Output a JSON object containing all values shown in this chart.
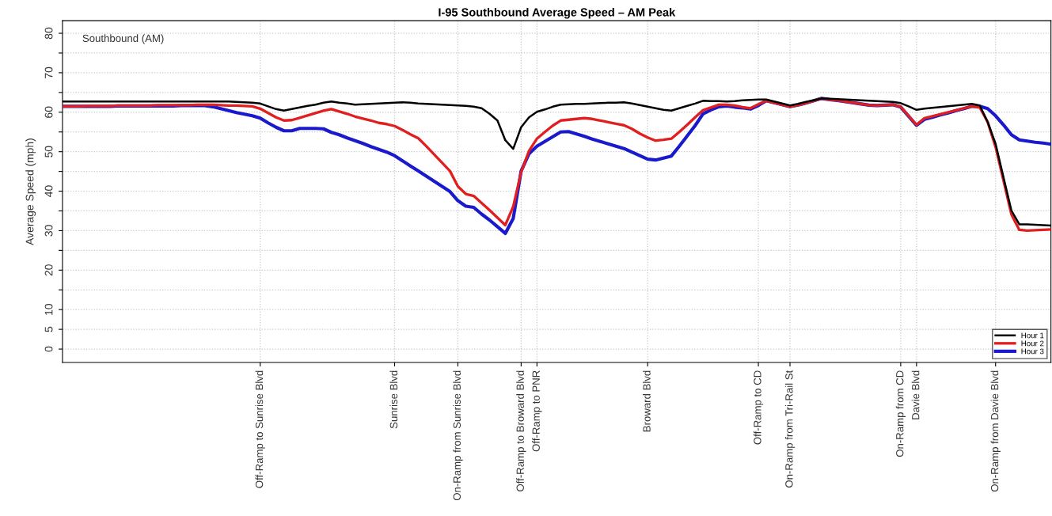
{
  "chart_data": {
    "type": "line",
    "title": "I-95 Southbound Average Speed – AM Peak",
    "ylabel": "Average Speed (mph)",
    "annotations": [
      "Southbound (AM)"
    ],
    "categories": [
      null,
      null,
      null,
      null,
      null,
      null,
      null,
      null,
      null,
      null,
      null,
      null,
      null,
      null,
      null,
      null,
      null,
      null,
      null,
      null,
      null,
      null,
      null,
      null,
      null,
      "Off-Ramp to Sunrise Blvd",
      null,
      null,
      null,
      null,
      null,
      null,
      null,
      null,
      null,
      null,
      null,
      null,
      null,
      null,
      null,
      null,
      "Sunrise Blvd",
      null,
      null,
      null,
      null,
      null,
      null,
      null,
      "On-Ramp from Sunrise Blvd",
      null,
      null,
      null,
      null,
      null,
      null,
      null,
      "Off-Ramp to Broward Blvd",
      null,
      "Off-Ramp to PNR",
      null,
      null,
      null,
      null,
      null,
      null,
      null,
      null,
      null,
      null,
      null,
      null,
      null,
      "Broward Blvd",
      null,
      null,
      null,
      null,
      null,
      null,
      null,
      null,
      null,
      null,
      null,
      null,
      null,
      "Off-Ramp to CD",
      null,
      null,
      null,
      "On-Ramp from Tri-Rail St",
      null,
      null,
      null,
      null,
      null,
      null,
      null,
      null,
      null,
      null,
      null,
      null,
      null,
      "On-Ramp from CD",
      null,
      "Davie Blvd",
      null,
      null,
      null,
      null,
      null,
      null,
      null,
      null,
      null,
      "On-Ramp from Davie Blvd",
      null,
      null,
      null,
      null,
      null,
      null,
      null
    ],
    "ylim": [
      -3.4,
      83.2
    ],
    "yticks": [
      0,
      5,
      10,
      {
        "value": 15,
        "label": null
      },
      20,
      {
        "value": 25,
        "label": null
      },
      30,
      {
        "value": 35,
        "label": null
      },
      40,
      {
        "value": 45,
        "label": null
      },
      50,
      {
        "value": 55,
        "label": null
      },
      60,
      {
        "value": 65,
        "label": null
      },
      70,
      {
        "value": 75,
        "label": null
      },
      80
    ],
    "grid": true,
    "legend": "bottom right",
    "marker": "none",
    "line_style": "solid",
    "series": [
      {
        "name": "Hour 1",
        "color": "#000000",
        "values": [
          62.7,
          62.7,
          62.7,
          62.7,
          62.7,
          62.7,
          62.7,
          62.7,
          62.7,
          62.7,
          62.7,
          62.7,
          62.7,
          62.7,
          62.7,
          62.7,
          62.7,
          62.7,
          62.7,
          62.7,
          62.7,
          62.7,
          62.6,
          62.5,
          62.4,
          62.2,
          61.5,
          60.8,
          60.4,
          60.8,
          61.2,
          61.6,
          61.9,
          62.4,
          62.7,
          62.4,
          62.2,
          61.9,
          62.0,
          62.1,
          62.2,
          62.3,
          62.4,
          62.5,
          62.4,
          62.2,
          62.1,
          62.0,
          61.9,
          61.8,
          61.7,
          61.6,
          61.4,
          61.0,
          59.6,
          57.9,
          52.9,
          50.7,
          56.2,
          58.7,
          60.1,
          60.7,
          61.4,
          61.9,
          62.0,
          62.1,
          62.1,
          62.2,
          62.3,
          62.4,
          62.4,
          62.5,
          62.2,
          61.8,
          61.4,
          61.0,
          60.6,
          60.4,
          61.0,
          61.6,
          62.2,
          62.9,
          62.8,
          62.8,
          62.7,
          62.8,
          63.0,
          63.1,
          63.2,
          63.2,
          62.7,
          62.2,
          61.7,
          62.1,
          62.6,
          63.0,
          63.5,
          63.4,
          63.3,
          63.2,
          63.1,
          63.0,
          62.9,
          62.8,
          62.7,
          62.6,
          62.3,
          61.5,
          60.6,
          60.9,
          61.1,
          61.3,
          61.5,
          61.7,
          61.9,
          62.1,
          61.7,
          57.5,
          52.0,
          43.5,
          35.1,
          31.6,
          31.6,
          31.5,
          31.4,
          31.3
        ]
      },
      {
        "name": "Hour 2",
        "color": "#e02020",
        "values": [
          61.5,
          61.5,
          61.5,
          61.6,
          61.6,
          61.6,
          61.6,
          61.7,
          61.7,
          61.7,
          61.7,
          61.7,
          61.8,
          61.8,
          61.8,
          61.8,
          61.8,
          61.9,
          61.9,
          61.9,
          61.8,
          61.7,
          61.7,
          61.6,
          61.5,
          60.9,
          59.8,
          58.7,
          57.9,
          58.0,
          58.6,
          59.2,
          59.8,
          60.4,
          60.8,
          60.2,
          59.6,
          58.9,
          58.4,
          57.9,
          57.3,
          57.0,
          56.5,
          55.5,
          54.4,
          53.4,
          51.4,
          49.3,
          47.2,
          45.1,
          41.2,
          39.3,
          38.8,
          37.0,
          35.2,
          33.3,
          31.4,
          36.1,
          44.8,
          50.2,
          53.3,
          55.0,
          56.6,
          57.9,
          58.1,
          58.3,
          58.5,
          58.3,
          57.9,
          57.5,
          57.1,
          56.7,
          55.8,
          54.6,
          53.6,
          52.8,
          53.0,
          53.3,
          55.0,
          56.8,
          58.7,
          60.5,
          61.2,
          61.9,
          61.9,
          61.7,
          61.3,
          61.0,
          62.0,
          62.9,
          62.4,
          61.9,
          61.4,
          61.8,
          62.3,
          62.9,
          63.5,
          63.2,
          63.0,
          62.7,
          62.4,
          62.1,
          61.8,
          61.7,
          61.8,
          61.9,
          61.4,
          59.1,
          56.8,
          58.5,
          59.0,
          59.5,
          60.0,
          60.5,
          61.0,
          61.5,
          61.2,
          57.5,
          51.2,
          42.7,
          34.1,
          30.2,
          30.0,
          30.1,
          30.2,
          30.3
        ]
      },
      {
        "name": "Hour 3",
        "color": "#1a1acc",
        "values": [
          61.5,
          61.5,
          61.5,
          61.5,
          61.5,
          61.5,
          61.5,
          61.6,
          61.6,
          61.6,
          61.6,
          61.6,
          61.6,
          61.6,
          61.6,
          61.7,
          61.7,
          61.7,
          61.7,
          61.4,
          60.9,
          60.4,
          59.9,
          59.5,
          59.1,
          58.5,
          57.3,
          56.2,
          55.3,
          55.3,
          55.9,
          55.9,
          55.9,
          55.8,
          54.9,
          54.3,
          53.5,
          52.8,
          52.1,
          51.3,
          50.6,
          49.9,
          49.0,
          47.7,
          46.4,
          45.1,
          43.8,
          42.5,
          41.2,
          39.9,
          37.6,
          36.2,
          35.9,
          34.2,
          32.7,
          31.0,
          29.3,
          33.1,
          45.1,
          49.5,
          51.4,
          52.6,
          53.8,
          55.0,
          55.1,
          54.5,
          53.9,
          53.2,
          52.6,
          52.0,
          51.4,
          50.8,
          49.9,
          49.0,
          48.1,
          47.9,
          48.4,
          48.9,
          51.4,
          54.0,
          56.6,
          59.6,
          60.6,
          61.4,
          61.6,
          61.3,
          61.1,
          60.8,
          61.7,
          62.9,
          62.4,
          61.9,
          61.4,
          61.8,
          62.3,
          62.9,
          63.5,
          63.2,
          63.0,
          62.7,
          62.4,
          62.1,
          61.8,
          61.7,
          61.8,
          61.9,
          61.3,
          59.0,
          56.7,
          58.2,
          58.7,
          59.3,
          59.8,
          60.4,
          60.9,
          61.5,
          61.5,
          60.9,
          59.1,
          56.8,
          54.3,
          53.0,
          52.7,
          52.4,
          52.2,
          51.9
        ]
      }
    ]
  }
}
